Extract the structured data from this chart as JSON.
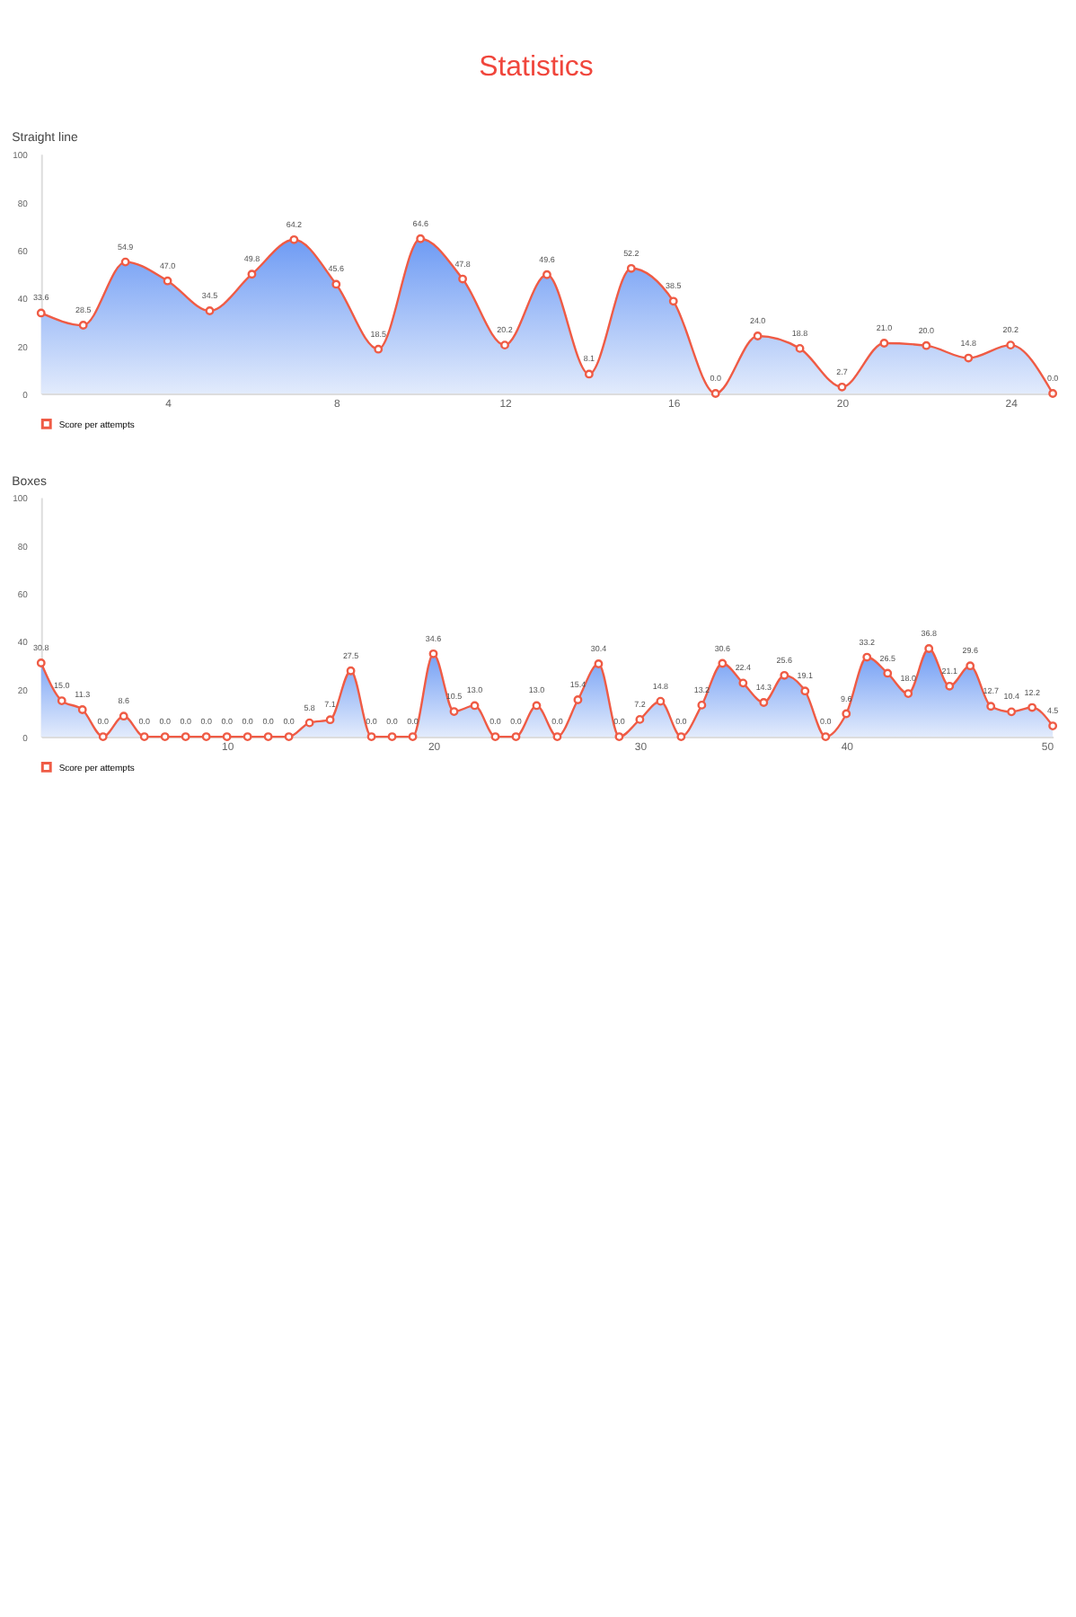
{
  "chart_data": [
    {
      "type": "area",
      "title": "Statistics",
      "subtitle": "Straight line",
      "x": [
        1,
        2,
        3,
        4,
        5,
        6,
        7,
        8,
        9,
        10,
        11,
        12,
        13,
        14,
        15,
        16,
        17,
        18,
        19,
        20,
        21,
        22,
        23,
        24,
        25
      ],
      "xlim": [
        1,
        25
      ],
      "xticks": [
        4,
        8,
        12,
        16,
        20,
        24
      ],
      "ylim": [
        0,
        100
      ],
      "yticks": [
        0,
        20,
        40,
        60,
        80,
        100
      ],
      "series": [
        {
          "name": "Score per attempts",
          "color": "#ef5b45",
          "values": [
            33.6,
            28.5,
            54.9,
            47.0,
            34.5,
            49.8,
            64.2,
            45.6,
            18.5,
            64.6,
            47.8,
            20.2,
            49.6,
            8.1,
            52.2,
            38.5,
            0.0,
            24.0,
            18.8,
            2.7,
            21.0,
            20.0,
            14.8,
            20.2,
            0.0
          ],
          "value_labels": [
            "33.6",
            "28.5",
            "54.9",
            "47.0",
            "34.5",
            "49.8",
            "64.2",
            "45.6",
            "18.5",
            "64.6",
            "47.8",
            "20.2",
            "49.6",
            "8.1",
            "52.2",
            "38.5",
            "0.0",
            "24.0",
            "18.8",
            "2.7",
            "21.0",
            "20.0",
            "14.8",
            "20.2",
            "0.0"
          ]
        }
      ],
      "marker": "circle",
      "legend": "bottom left",
      "grid": false
    },
    {
      "type": "area",
      "title": "Boxes",
      "x": [
        1,
        2,
        3,
        4,
        5,
        6,
        7,
        8,
        9,
        10,
        11,
        12,
        13,
        14,
        15,
        16,
        17,
        18,
        19,
        20,
        21,
        22,
        23,
        24,
        25,
        26,
        27,
        28,
        29,
        30,
        31,
        32,
        33,
        34,
        35,
        36,
        37,
        38,
        39,
        40,
        41,
        42,
        43,
        44,
        45,
        46,
        47,
        48,
        49,
        50
      ],
      "xlim": [
        1,
        50
      ],
      "xticks": [
        10,
        20,
        30,
        40,
        50
      ],
      "ylim": [
        0,
        100
      ],
      "yticks": [
        0,
        20,
        40,
        60,
        80,
        100
      ],
      "series": [
        {
          "name": "Score per attempts",
          "color": "#ef5b45",
          "values": [
            30.8,
            15.0,
            11.3,
            0.0,
            8.6,
            0.0,
            0.0,
            0.0,
            0.0,
            0.0,
            0.0,
            0.0,
            0.0,
            5.8,
            7.1,
            27.5,
            0.0,
            0.0,
            0.0,
            34.6,
            10.5,
            13.0,
            0.0,
            0.0,
            13.0,
            0.0,
            15.4,
            30.4,
            0.0,
            7.2,
            14.8,
            0.0,
            13.2,
            30.6,
            22.4,
            14.3,
            25.6,
            19.1,
            0.0,
            9.6,
            33.2,
            26.5,
            18.0,
            36.8,
            21.1,
            29.6,
            12.7,
            10.4,
            12.2,
            4.5
          ],
          "value_labels": [
            "30.8",
            "15.0",
            "11.3",
            "0.0",
            "8.6",
            "0.0",
            "0.0",
            "0.0",
            "0.0",
            "0.0",
            "0.0",
            "0.0",
            "0.0",
            "5.8",
            "7.1",
            "27.5",
            "0.0",
            "0.0",
            "0.0",
            "34.6",
            "10.5",
            "13.0",
            "0.0",
            "0.0",
            "13.0",
            "0.0",
            "15.4",
            "30.4",
            "0.0",
            "7.2",
            "14.8",
            "0.0",
            "13.2",
            "30.6",
            "22.4",
            "14.3",
            "25.6",
            "19.1",
            "0.0",
            "9.6",
            "33.2",
            "26.5",
            "18.0",
            "36.8",
            "21.1",
            "29.6",
            "12.7",
            "10.4",
            "12.2",
            "4.5"
          ]
        }
      ],
      "marker": "circle",
      "legend": "bottom left",
      "grid": false
    }
  ]
}
